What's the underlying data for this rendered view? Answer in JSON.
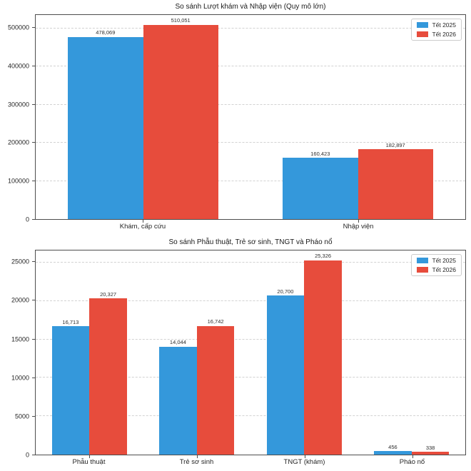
{
  "colors": {
    "tet2025": "#3498db",
    "tet2026": "#e74c3c",
    "grid": "#d2d2d2",
    "spine": "#4d4d4d",
    "text": "#262626",
    "background": "#ffffff"
  },
  "legend": {
    "items": [
      {
        "label": "Tết 2025",
        "color": "#3498db"
      },
      {
        "label": "Tết 2026",
        "color": "#e74c3c"
      }
    ]
  },
  "chart_data": [
    {
      "type": "bar",
      "title": "So sánh Lượt khám và Nhập viện (Quy mô lớn)",
      "categories": [
        "Khám, cấp cứu",
        "Nhập viện"
      ],
      "series": [
        {
          "name": "Tết 2025",
          "color": "#3498db",
          "values": [
            478069,
            160423
          ],
          "labels": [
            "478,069",
            "160,423"
          ]
        },
        {
          "name": "Tết 2026",
          "color": "#e74c3c",
          "values": [
            510051,
            182897
          ],
          "labels": [
            "510,051",
            "182,897"
          ]
        }
      ],
      "xlabel": "",
      "ylabel": "",
      "ylim": [
        0,
        535554
      ],
      "yticks": [
        0,
        100000,
        200000,
        300000,
        400000,
        500000
      ],
      "ytick_labels": [
        "0",
        "100000",
        "200000",
        "300000",
        "400000",
        "500000"
      ],
      "grid": true,
      "grid_style": "dashed",
      "legend_position": "upper right"
    },
    {
      "type": "bar",
      "title": "So sánh Phẫu thuật, Trẻ sơ sinh, TNGT và Pháo nổ",
      "categories": [
        "Phẫu thuật",
        "Trẻ sơ sinh",
        "TNGT (khám)",
        "Pháo nổ"
      ],
      "series": [
        {
          "name": "Tết 2025",
          "color": "#3498db",
          "values": [
            16713,
            14044,
            20700,
            456
          ],
          "labels": [
            "16,713",
            "14,044",
            "20,700",
            "456"
          ]
        },
        {
          "name": "Tết 2026",
          "color": "#e74c3c",
          "values": [
            20327,
            16742,
            25326,
            338
          ],
          "labels": [
            "20,327",
            "16,742",
            "25,326",
            "338"
          ]
        }
      ],
      "xlabel": "",
      "ylabel": "",
      "ylim": [
        0,
        26592
      ],
      "yticks": [
        0,
        5000,
        10000,
        15000,
        20000,
        25000
      ],
      "ytick_labels": [
        "0",
        "5000",
        "10000",
        "15000",
        "20000",
        "25000"
      ],
      "grid": true,
      "grid_style": "dashed",
      "legend_position": "upper right"
    }
  ]
}
